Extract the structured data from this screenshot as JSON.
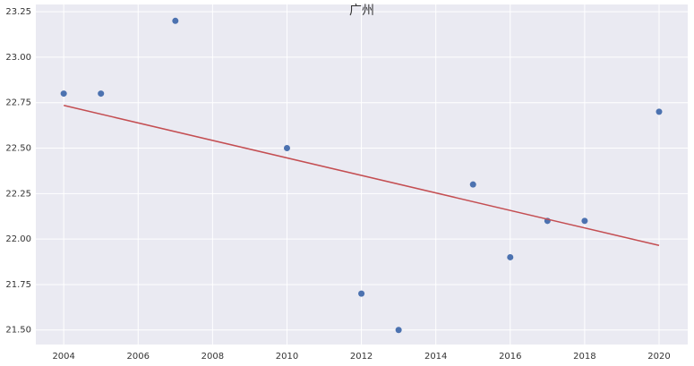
{
  "chart_data": {
    "type": "scatter",
    "title": "广州",
    "series": [
      {
        "type": "scatter",
        "color": "#4c72b0",
        "x": [
          2004,
          2005,
          2007,
          2010,
          2012,
          2013,
          2015,
          2016,
          2017,
          2018,
          2020
        ],
        "values": [
          22.8,
          22.8,
          23.2,
          22.5,
          21.7,
          21.5,
          22.3,
          21.9,
          22.1,
          22.1,
          22.7
        ]
      },
      {
        "type": "line",
        "color": "#c44e52",
        "x": [
          2004,
          2020
        ],
        "values": [
          22.735,
          21.965
        ]
      }
    ],
    "xlim": [
      2003.25,
      2020.77
    ],
    "xticks": [
      2004,
      2006,
      2008,
      2010,
      2012,
      2014,
      2016,
      2018,
      2020
    ],
    "ylim": [
      21.42,
      23.29
    ],
    "yticks": [
      {
        "value": 21.5,
        "label": "21.50"
      },
      21.75,
      {
        "value": 22,
        "label": "22.00"
      },
      22.25,
      {
        "value": 22.5,
        "label": "22.50"
      },
      22.75,
      {
        "value": 23,
        "label": "23.00"
      },
      23.25
    ],
    "grid": true,
    "background": "#eaeaf2"
  }
}
